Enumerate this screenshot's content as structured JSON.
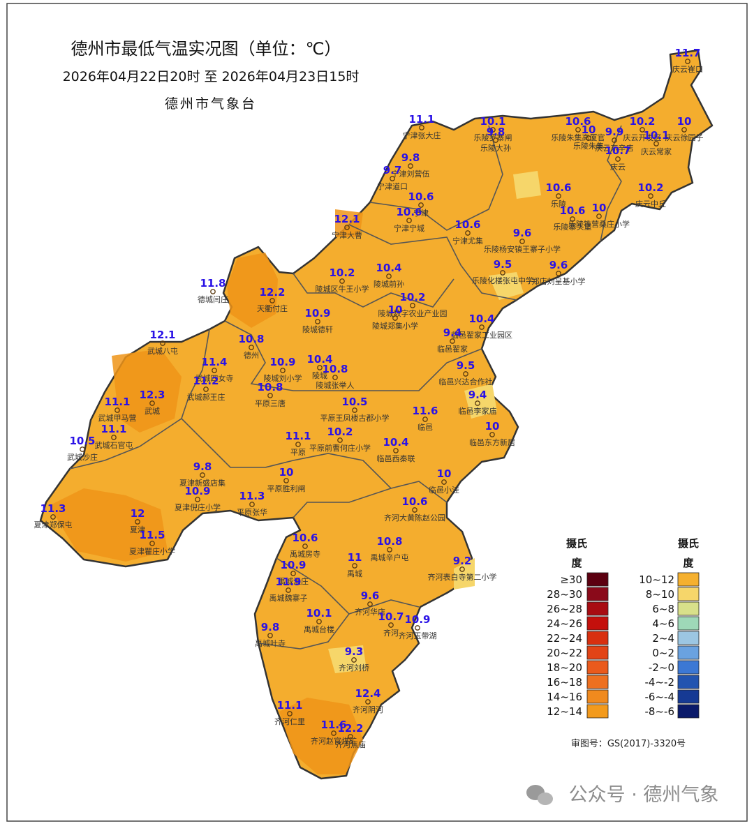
{
  "title": "德州市最低气温实况图（单位：℃）",
  "subtitle": "2026年04月22日20时   至   2026年04月23日15时",
  "issuer": "德州市气象台",
  "approval": "审图号：GS(2017)-3320号",
  "watermark": "公众号 · 德州气象",
  "value_color": "#2a12e6",
  "stations": [
    {
      "value": 11.7,
      "name": "庆云崔口"
    },
    {
      "value": 11.1,
      "name": "宁津张大庄"
    },
    {
      "value": 10.1,
      "name": "乐陵罗寨闸"
    },
    {
      "value": 9.8,
      "name": "乐陵大孙"
    },
    {
      "value": 10.6,
      "name": "乐陵朱集高厦官"
    },
    {
      "value": 10,
      "name": "乐陵朱集"
    },
    {
      "value": 10.2,
      "name": "庆云开发区"
    },
    {
      "value": 9.9,
      "name": "庆云东辛店"
    },
    {
      "value": 10.7,
      "name": "庆云"
    },
    {
      "value": 10.1,
      "name": "庆云常家"
    },
    {
      "value": 10,
      "name": "庆云徐园子"
    },
    {
      "value": 9.8,
      "name": "宁津刘营伍"
    },
    {
      "value": 9.7,
      "name": "宁津道口"
    },
    {
      "value": 10.6,
      "name": "宁津"
    },
    {
      "value": 10.6,
      "name": "宁津宁城"
    },
    {
      "value": 10.6,
      "name": "宁津尤集"
    },
    {
      "value": 12.1,
      "name": "宁津大曹"
    },
    {
      "value": 10.6,
      "name": "乐陵"
    },
    {
      "value": 10.6,
      "name": "乐陵寨头堡"
    },
    {
      "value": 10,
      "name": "乐陵铁营桑庄小学"
    },
    {
      "value": 10.2,
      "name": "庆云中丘"
    },
    {
      "value": 9.6,
      "name": "乐陵杨安镇王寨子小学"
    },
    {
      "value": 9.5,
      "name": "乐陵化楼张屯中学"
    },
    {
      "value": 9.6,
      "name": "郑店刘呈基小学"
    },
    {
      "value": 11.8,
      "name": "德城闫庄"
    },
    {
      "value": 12.2,
      "name": "天衢付庄"
    },
    {
      "value": 10.2,
      "name": "陵城区牛王小学"
    },
    {
      "value": 10.4,
      "name": "陵城前孙"
    },
    {
      "value": 10.2,
      "name": "陵城数字农业产业园"
    },
    {
      "value": 10,
      "name": "陵城郑集小学"
    },
    {
      "value": 10.9,
      "name": "陵城德轩"
    },
    {
      "value": 10.8,
      "name": "德州"
    },
    {
      "value": 10.4,
      "name": "临邑翟家工业园区"
    },
    {
      "value": 9.4,
      "name": "临邑翟家"
    },
    {
      "value": 12.1,
      "name": "武城八屯"
    },
    {
      "value": 11.4,
      "name": "武城四女寺"
    },
    {
      "value": 11.2,
      "name": "武城郝王庄"
    },
    {
      "value": 10.9,
      "name": "陵城刘小学"
    },
    {
      "value": 10.8,
      "name": "平原三唐"
    },
    {
      "value": 10.4,
      "name": "陵城"
    },
    {
      "value": 10.8,
      "name": "陵城张举人"
    },
    {
      "value": 12.3,
      "name": "武城"
    },
    {
      "value": 11.1,
      "name": "武城甲马营"
    },
    {
      "value": 11.1,
      "name": "武城石官屯"
    },
    {
      "value": 10.5,
      "name": "武城沙庄"
    },
    {
      "value": 9.5,
      "name": "临邑兴达合作社"
    },
    {
      "value": 9.4,
      "name": "临邑李家庙"
    },
    {
      "value": 10,
      "name": "临邑东方新居"
    },
    {
      "value": 10.5,
      "name": "平原王凤楼古郡小学"
    },
    {
      "value": 11.6,
      "name": "临邑"
    },
    {
      "value": 11.1,
      "name": "平原"
    },
    {
      "value": 10.2,
      "name": "平原前曹何庄小学"
    },
    {
      "value": 10.4,
      "name": "临邑西秦联"
    },
    {
      "value": 9.8,
      "name": "夏津新盛店集"
    },
    {
      "value": 10.9,
      "name": "夏津倪庄小学"
    },
    {
      "value": 10,
      "name": "平原胜利闸"
    },
    {
      "value": 10,
      "name": "临邑小洼"
    },
    {
      "value": 11.3,
      "name": "平原张华"
    },
    {
      "value": 11.3,
      "name": "夏津郑保屯"
    },
    {
      "value": 12,
      "name": "夏津"
    },
    {
      "value": 11.5,
      "name": "夏津瞿庄小学"
    },
    {
      "value": 10.6,
      "name": "齐河大黄陈赵公园"
    },
    {
      "value": 10.6,
      "name": "禹城房寺"
    },
    {
      "value": 10.8,
      "name": "禹城辛户屯"
    },
    {
      "value": 11,
      "name": "禹城"
    },
    {
      "value": 9.2,
      "name": "齐河表白寺第二小学"
    },
    {
      "value": 10.9,
      "name": "禹城温庄"
    },
    {
      "value": 11.9,
      "name": "禹城魏寨子"
    },
    {
      "value": 9.6,
      "name": "齐河华店"
    },
    {
      "value": 10.1,
      "name": "禹城台楼"
    },
    {
      "value": 10.7,
      "name": "齐河"
    },
    {
      "value": 10.9,
      "name": "齐河玉带湖"
    },
    {
      "value": 9.8,
      "name": "禹城叶寺"
    },
    {
      "value": 9.3,
      "name": "齐河刘桥"
    },
    {
      "value": 12.4,
      "name": "齐河阴河"
    },
    {
      "value": 11.1,
      "name": "齐河仁里"
    },
    {
      "value": 11.6,
      "name": "齐河赵官煤矿"
    },
    {
      "value": 12.2,
      "name": "齐河焦庙"
    }
  ],
  "legend": {
    "unit_top": "摄氏",
    "unit_bottom": "度",
    "left": [
      {
        "label": "≥30",
        "color": "#5c0010"
      },
      {
        "label": "28~30",
        "color": "#8a0a1a"
      },
      {
        "label": "26~28",
        "color": "#a80c12"
      },
      {
        "label": "24~26",
        "color": "#c4100c"
      },
      {
        "label": "22~24",
        "color": "#d8300f"
      },
      {
        "label": "20~22",
        "color": "#e24416"
      },
      {
        "label": "18~20",
        "color": "#ea5a1c"
      },
      {
        "label": "16~18",
        "color": "#ee7020"
      },
      {
        "label": "14~16",
        "color": "#f08a1e"
      },
      {
        "label": "12~14",
        "color": "#f39a1c"
      }
    ],
    "right": [
      {
        "label": "10~12",
        "color": "#f5b02e"
      },
      {
        "label": "8~10",
        "color": "#f6d66a"
      },
      {
        "label": "6~8",
        "color": "#d8e08a"
      },
      {
        "label": "4~6",
        "color": "#9ed8b8"
      },
      {
        "label": "2~4",
        "color": "#9cc6e2"
      },
      {
        "label": "0~2",
        "color": "#6aa2e0"
      },
      {
        "label": "-2~0",
        "color": "#3c78d4"
      },
      {
        "label": "-4~-2",
        "color": "#2254b0"
      },
      {
        "label": "-6~-4",
        "color": "#163a94"
      },
      {
        "label": "-8~-6",
        "color": "#0a1a6a"
      }
    ]
  }
}
